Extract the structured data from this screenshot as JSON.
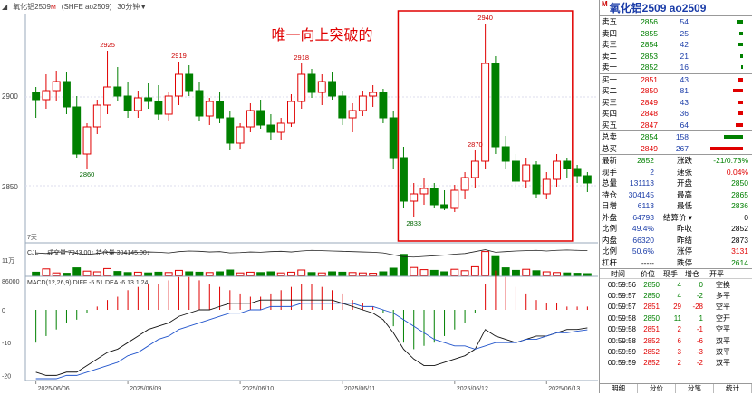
{
  "header": {
    "marker": "M",
    "name": "氧化铝2509",
    "exchange": "(SHFE ao2509)",
    "period": "30分钟",
    "chevron": "▼"
  },
  "annotation": "唯一向上突破的",
  "price_axis": {
    "labels": [
      "2900",
      "2850"
    ]
  },
  "candles": {
    "peak_labels": [
      "2860",
      "2925",
      "2919",
      "2870",
      "2918",
      "2833",
      "2940"
    ],
    "sub_label": "7天",
    "series": [
      [
        2902,
        2905,
        2888,
        2898
      ],
      [
        2898,
        2912,
        2893,
        2903
      ],
      [
        2903,
        2914,
        2897,
        2908
      ],
      [
        2908,
        2913,
        2890,
        2894
      ],
      [
        2894,
        2900,
        2866,
        2868
      ],
      [
        2868,
        2885,
        2860,
        2883
      ],
      [
        2883,
        2898,
        2879,
        2895
      ],
      [
        2895,
        2925,
        2890,
        2905
      ],
      [
        2905,
        2916,
        2897,
        2900
      ],
      [
        2900,
        2908,
        2888,
        2892
      ],
      [
        2892,
        2903,
        2888,
        2899
      ],
      [
        2899,
        2907,
        2893,
        2897
      ],
      [
        2897,
        2906,
        2887,
        2890
      ],
      [
        2890,
        2902,
        2886,
        2900
      ],
      [
        2900,
        2919,
        2895,
        2912
      ],
      [
        2912,
        2917,
        2900,
        2903
      ],
      [
        2903,
        2908,
        2886,
        2889
      ],
      [
        2889,
        2899,
        2884,
        2897
      ],
      [
        2897,
        2902,
        2885,
        2888
      ],
      [
        2888,
        2892,
        2870,
        2874
      ],
      [
        2874,
        2885,
        2871,
        2883
      ],
      [
        2883,
        2896,
        2880,
        2892
      ],
      [
        2892,
        2898,
        2882,
        2884
      ],
      [
        2884,
        2890,
        2876,
        2880
      ],
      [
        2880,
        2888,
        2876,
        2885
      ],
      [
        2885,
        2901,
        2883,
        2897
      ],
      [
        2897,
        2918,
        2893,
        2912
      ],
      [
        2912,
        2915,
        2899,
        2902
      ],
      [
        2902,
        2912,
        2895,
        2908
      ],
      [
        2908,
        2913,
        2898,
        2900
      ],
      [
        2900,
        2903,
        2884,
        2888
      ],
      [
        2888,
        2896,
        2880,
        2892
      ],
      [
        2892,
        2903,
        2889,
        2900
      ],
      [
        2900,
        2906,
        2894,
        2902
      ],
      [
        2902,
        2904,
        2885,
        2888
      ],
      [
        2888,
        2892,
        2860,
        2866
      ],
      [
        2866,
        2872,
        2838,
        2842
      ],
      [
        2842,
        2852,
        2833,
        2846
      ],
      [
        2846,
        2855,
        2840,
        2849
      ],
      [
        2849,
        2852,
        2838,
        2840
      ],
      [
        2840,
        2848,
        2837,
        2838
      ],
      [
        2838,
        2851,
        2836,
        2848
      ],
      [
        2848,
        2858,
        2843,
        2855
      ],
      [
        2855,
        2870,
        2849,
        2864
      ],
      [
        2864,
        2940,
        2860,
        2918
      ],
      [
        2918,
        2922,
        2868,
        2872
      ],
      [
        2872,
        2878,
        2860,
        2864
      ],
      [
        2864,
        2868,
        2848,
        2853
      ],
      [
        2853,
        2866,
        2849,
        2862
      ],
      [
        2862,
        2864,
        2844,
        2846
      ],
      [
        2846,
        2858,
        2843,
        2854
      ],
      [
        2854,
        2868,
        2850,
        2864
      ],
      [
        2864,
        2866,
        2855,
        2860
      ],
      [
        2860,
        2862,
        2852,
        2856
      ],
      [
        2856,
        2858,
        2847,
        2852
      ]
    ]
  },
  "volume": {
    "legend_label": "CJL",
    "legend_text": "成交量 7943.00↑ 持仓量 304145.00↓",
    "axis_labels": [
      "11万",
      "86000"
    ],
    "values": [
      9,
      18,
      7,
      6,
      21,
      12,
      10,
      19,
      11,
      8,
      9,
      7,
      9,
      8,
      14,
      10,
      9,
      8,
      10,
      15,
      7,
      9,
      8,
      10,
      7,
      9,
      15,
      8,
      7,
      10,
      9,
      8,
      7,
      6,
      10,
      20,
      58,
      22,
      16,
      14,
      10,
      17,
      13,
      24,
      66,
      52,
      21,
      14,
      17,
      13,
      10,
      8,
      7,
      6,
      5
    ],
    "oi": [
      70,
      68,
      72,
      74,
      69,
      65,
      68,
      72,
      71,
      70,
      72,
      73,
      72,
      70,
      74,
      76,
      75,
      73,
      74,
      70,
      71,
      73,
      72,
      74,
      75,
      73,
      76,
      78,
      77,
      76,
      75,
      74,
      73,
      72,
      70,
      64,
      58,
      57,
      59,
      61,
      63,
      66,
      68,
      74,
      80,
      72,
      74,
      76,
      77,
      78,
      76,
      78,
      79,
      78,
      77
    ]
  },
  "macd": {
    "legend": "MACD(12,26,9)  DIFF -5.51  DEA -6.13  1.24",
    "axis_labels": [
      "0",
      "-10",
      "-20"
    ],
    "bars": [
      -10,
      -8,
      -6,
      -4,
      -3,
      -1,
      1,
      3,
      4,
      6,
      7,
      8,
      8,
      9,
      10,
      10,
      9,
      8,
      7,
      6,
      5,
      4,
      4,
      5,
      6,
      7,
      8,
      8,
      7,
      6,
      5,
      3,
      2,
      1,
      -1,
      -5,
      -10,
      -12,
      -11,
      -10,
      -8,
      -6,
      -4,
      -1,
      8,
      12,
      10,
      7,
      5,
      3,
      2,
      2,
      1,
      1,
      1
    ],
    "diff": [
      -19,
      -20,
      -20,
      -19,
      -19,
      -17,
      -15,
      -13,
      -12,
      -10,
      -8,
      -6,
      -5,
      -4,
      -2,
      -1,
      0,
      0,
      1,
      2,
      2,
      2,
      3,
      3,
      3,
      3,
      3,
      3,
      3,
      3,
      2,
      1,
      0,
      -1,
      -3,
      -7,
      -12,
      -15,
      -17,
      -17,
      -16,
      -15,
      -14,
      -12,
      -6,
      -8,
      -9,
      -10,
      -9,
      -8,
      -8,
      -7,
      -6,
      -6,
      -5.5
    ],
    "dea": [
      -21,
      -21,
      -21,
      -20,
      -20,
      -19,
      -18,
      -17,
      -16,
      -14,
      -13,
      -11,
      -9,
      -8,
      -6,
      -5,
      -4,
      -3,
      -2,
      -1,
      -1,
      0,
      0,
      1,
      1,
      1,
      2,
      2,
      2,
      2,
      2,
      2,
      1,
      1,
      0,
      -1,
      -3,
      -5,
      -7,
      -9,
      -10,
      -11,
      -11,
      -12,
      -11,
      -10,
      -10,
      -10,
      -9,
      -9,
      -8,
      -7,
      -7,
      -6.5,
      -6.1
    ]
  },
  "dates": [
    "2025/06/06",
    "2025/06/09",
    "2025/06/10",
    "2025/06/11",
    "2025/06/12",
    "2025/06/13"
  ],
  "side": {
    "marker": "M",
    "title": "氧化铝2509  ao2509",
    "sell": [
      {
        "label": "卖五",
        "price": "2856",
        "vol": "54",
        "bar": 0.18
      },
      {
        "label": "卖四",
        "price": "2855",
        "vol": "25",
        "bar": 0.09
      },
      {
        "label": "卖三",
        "price": "2854",
        "vol": "42",
        "bar": 0.14
      },
      {
        "label": "卖二",
        "price": "2853",
        "vol": "21",
        "bar": 0.07
      },
      {
        "label": "卖一",
        "price": "2852",
        "vol": "16",
        "bar": 0.06
      }
    ],
    "buy": [
      {
        "label": "买一",
        "price": "2851",
        "vol": "43",
        "bar": 0.14
      },
      {
        "label": "买二",
        "price": "2850",
        "vol": "81",
        "bar": 0.27
      },
      {
        "label": "买三",
        "price": "2849",
        "vol": "43",
        "bar": 0.14
      },
      {
        "label": "买四",
        "price": "2848",
        "vol": "36",
        "bar": 0.12
      },
      {
        "label": "买五",
        "price": "2847",
        "vol": "64",
        "bar": 0.21
      }
    ],
    "totals": [
      {
        "label": "总卖",
        "price": "2854",
        "vol": "158",
        "bar": 0.53,
        "color": "green"
      },
      {
        "label": "总买",
        "price": "2849",
        "vol": "267",
        "bar": 0.9,
        "color": "red"
      }
    ],
    "quote": [
      {
        "k1": "最新",
        "v1": "2852",
        "c1": "green",
        "k2": "涨跌",
        "v2": "-21/0.73%",
        "c2": "green"
      },
      {
        "k1": "现手",
        "v1": "2",
        "c1": "blue",
        "k2": "速张",
        "v2": "0.04%",
        "c2": "red"
      },
      {
        "k1": "总量",
        "v1": "131113",
        "c1": "blue",
        "k2": "开盘",
        "v2": "2850",
        "c2": "green"
      },
      {
        "k1": "持仓",
        "v1": "304145",
        "c1": "blue",
        "k2": "最高",
        "v2": "2865",
        "c2": "green"
      },
      {
        "k1": "日增",
        "v1": "6113",
        "c1": "blue",
        "k2": "最低",
        "v2": "2836",
        "c2": "green"
      },
      {
        "k1": "外盘",
        "v1": "64793",
        "c1": "blue",
        "k2": "结算价 ▾",
        "v2": "0",
        "c2": "blk"
      },
      {
        "k1": "比例",
        "v1": "49.4%",
        "c1": "blue",
        "k2": "昨收",
        "v2": "2852",
        "c2": "blk"
      },
      {
        "k1": "内盘",
        "v1": "66320",
        "c1": "blue",
        "k2": "昨结",
        "v2": "2873",
        "c2": "blk"
      },
      {
        "k1": "比例",
        "v1": "50.6%",
        "c1": "blue",
        "k2": "涨停",
        "v2": "3131",
        "c2": "red"
      },
      {
        "k1": "杠杆",
        "v1": "-----",
        "c1": "blk",
        "k2": "跌停",
        "v2": "2614",
        "c2": "green"
      }
    ],
    "ticks_header": [
      "时间",
      "价位",
      "现手",
      "增仓",
      "开平"
    ],
    "ticks": [
      {
        "t": "00:59:56",
        "p": "2850",
        "n": "4",
        "d": "0",
        "type": "空换",
        "c": "green"
      },
      {
        "t": "00:59:57",
        "p": "2850",
        "n": "4",
        "d": "-2",
        "type": "多平",
        "c": "green"
      },
      {
        "t": "00:59:57",
        "p": "2851",
        "n": "29",
        "d": "-28",
        "type": "空平",
        "c": "red"
      },
      {
        "t": "00:59:58",
        "p": "2850",
        "n": "11",
        "d": "1",
        "type": "空开",
        "c": "green"
      },
      {
        "t": "00:59:58",
        "p": "2851",
        "n": "2",
        "d": "-1",
        "type": "空平",
        "c": "red"
      },
      {
        "t": "00:59:58",
        "p": "2852",
        "n": "6",
        "d": "-6",
        "type": "双平",
        "c": "red"
      },
      {
        "t": "00:59:59",
        "p": "2852",
        "n": "3",
        "d": "-3",
        "type": "双平",
        "c": "red"
      },
      {
        "t": "00:59:59",
        "p": "2852",
        "n": "2",
        "d": "-2",
        "type": "双平",
        "c": "red"
      }
    ],
    "tabs": [
      "明细",
      "分价",
      "分笔",
      "统计"
    ]
  },
  "colors": {
    "up": "#e00000",
    "down": "#008000",
    "annotation": "#e00000",
    "accent": "#1a3ca8"
  }
}
